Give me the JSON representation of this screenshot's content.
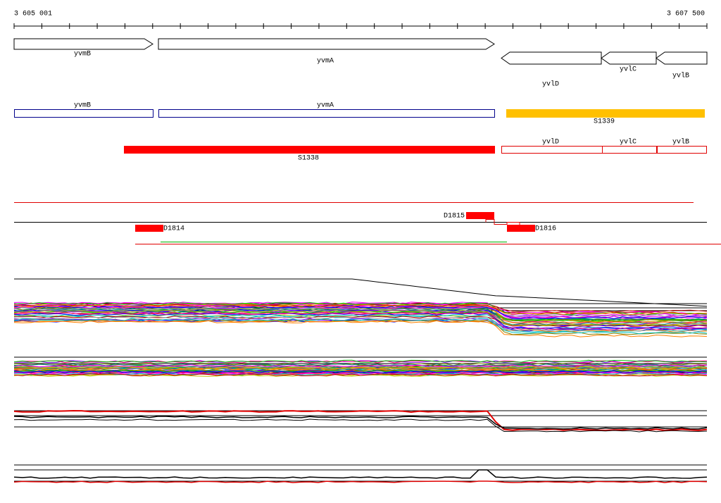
{
  "ruler": {
    "start": "3 605 001",
    "end": "3 607 500"
  },
  "genes": [
    "yvmB",
    "yvmA",
    "yvlD",
    "yvlC",
    "yvlB"
  ],
  "transcripts": [
    "yvmB",
    "yvmA"
  ],
  "segments": [
    "S1339",
    "S1338"
  ],
  "red_boxes": [
    "yvlD",
    "yvlC",
    "yvlB"
  ],
  "deletions": [
    "D1815",
    "D1814",
    "D1816"
  ]
}
